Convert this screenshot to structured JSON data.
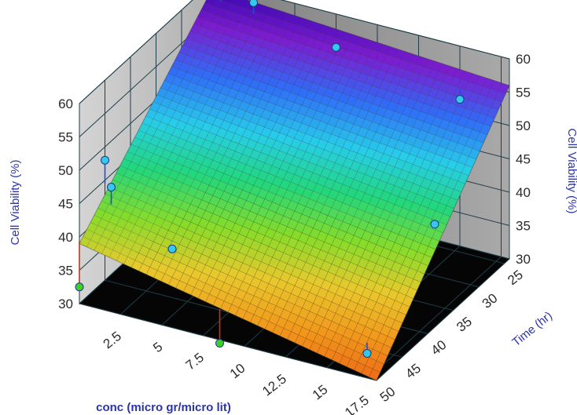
{
  "chart_data": {
    "type": "surface3d",
    "axes": {
      "x": {
        "label": "conc (micro gr/micro lit)",
        "ticks": [
          "2.5",
          "5",
          "7.5",
          "10",
          "12.5",
          "15",
          "17.5"
        ],
        "range": [
          0,
          18
        ]
      },
      "y": {
        "label": "Time (hr)",
        "ticks": [
          "25",
          "30",
          "35",
          "40",
          "45",
          "50"
        ],
        "range": [
          24,
          50
        ]
      },
      "z": {
        "label_left": "Cell Viability (%)",
        "label_right": "Cell Viability (%)",
        "ticks_left": [
          "30",
          "35",
          "40",
          "45",
          "50",
          "55",
          "60"
        ],
        "ticks_right": [
          "30",
          "35",
          "40",
          "45",
          "50",
          "55",
          "60"
        ],
        "range": [
          30,
          60
        ]
      }
    },
    "surface": {
      "model": "linear",
      "corners": [
        {
          "x": 0,
          "y": 24,
          "z": 59
        },
        {
          "x": 18,
          "y": 24,
          "z": 56
        },
        {
          "x": 0,
          "y": 50,
          "z": 39
        },
        {
          "x": 18,
          "y": 50,
          "z": 30
        }
      ],
      "colormap": [
        "#2300aa",
        "#7c1ccf",
        "#2f6ef7",
        "#27cdea",
        "#22d77b",
        "#86dc2a",
        "#e8c92d",
        "#f19a1c",
        "#ee6a16"
      ]
    },
    "points": [
      {
        "x": 0.5,
        "y": 24,
        "z": 60,
        "fitted": 57.4,
        "side": "above"
      },
      {
        "x": 2.5,
        "y": 24,
        "z": 58.5,
        "fitted": 56.9,
        "side": "above"
      },
      {
        "x": 2.5,
        "y": 25,
        "z": 53,
        "fitted": 56.2,
        "side": "below"
      },
      {
        "x": 7.5,
        "y": 24,
        "z": 55,
        "fitted": 55.4,
        "side": "above"
      },
      {
        "x": 15,
        "y": 24,
        "z": 52,
        "fitted": 53.6,
        "side": "above"
      },
      {
        "x": 17.5,
        "y": 37,
        "z": 44,
        "fitted": 44,
        "side": "above"
      },
      {
        "x": 0,
        "y": 45,
        "z": 48,
        "fitted": 44.5,
        "side": "above"
      },
      {
        "x": 1,
        "y": 47,
        "z": 46,
        "fitted": 43.4,
        "side": "above"
      },
      {
        "x": 5,
        "y": 48,
        "z": 40,
        "fitted": 40.5,
        "side": "above"
      },
      {
        "x": 0,
        "y": 50,
        "z": 32.5,
        "fitted": 39.4,
        "side": "below"
      },
      {
        "x": 8.5,
        "y": 50,
        "z": 29.5,
        "fitted": 34.6,
        "side": "below"
      },
      {
        "x": 16.5,
        "y": 47,
        "z": 31,
        "fitted": 32.6,
        "side": "above"
      }
    ],
    "colors": {
      "point_above": "#34c8ee",
      "point_below": "#3fcf2c",
      "stem_above": "#2050d0",
      "stem_below": "#c8321e",
      "floor": "#050505",
      "walls": "#a5a5a5",
      "grid": "#1f3e4a"
    }
  }
}
